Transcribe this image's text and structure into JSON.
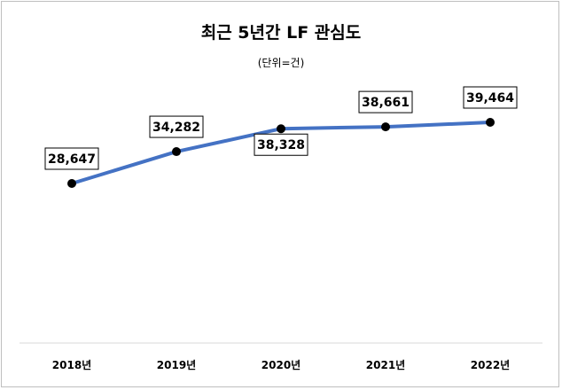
{
  "chart_data": {
    "type": "line",
    "title": "최근 5년간 LF 관심도",
    "subtitle": "(단위=건)",
    "categories": [
      "2018년",
      "2019년",
      "2020년",
      "2021년",
      "2022년"
    ],
    "series": [
      {
        "values": [
          28647,
          34282,
          38328,
          38661,
          39464
        ],
        "labels": [
          "28,647",
          "34,282",
          "38,328",
          "38,661",
          "39,464"
        ],
        "color": "#4472c4"
      }
    ],
    "grid": false,
    "legend": "none"
  }
}
